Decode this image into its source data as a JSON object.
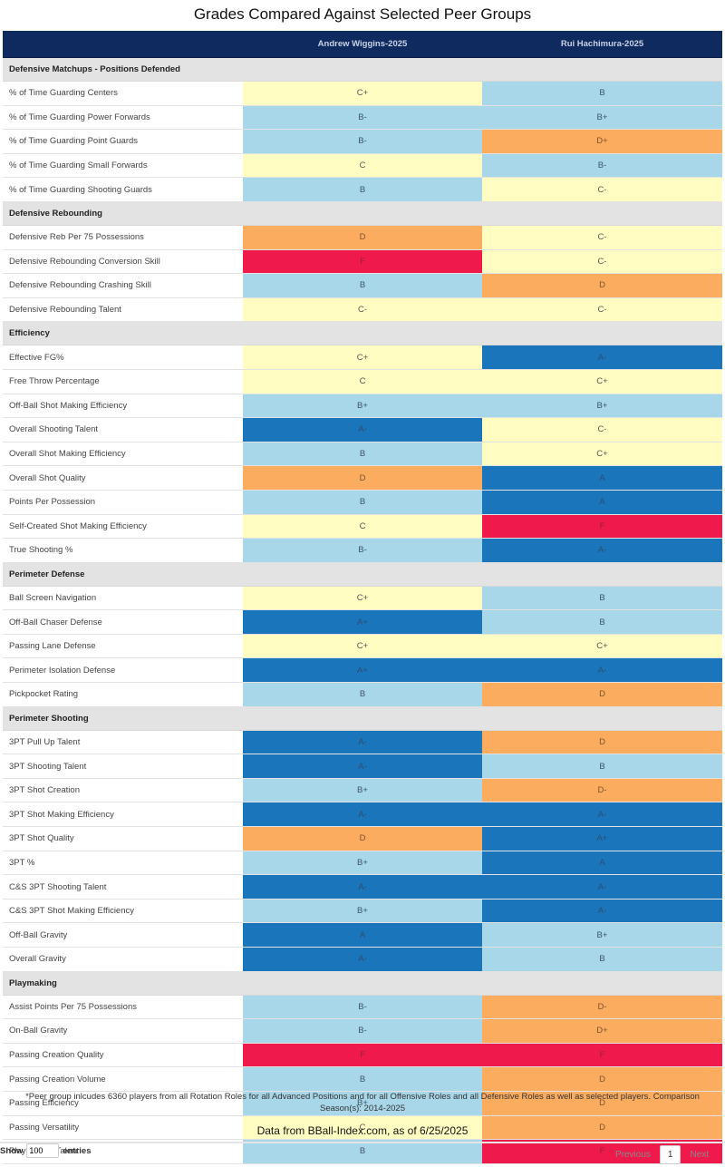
{
  "page_title": "Grades Compared Against Selected Peer Groups",
  "columns": [
    "",
    "Andrew Wiggins-2025",
    "Rui Hachimura-2025"
  ],
  "grade_colors": {
    "A+": "dark",
    "A": "dark",
    "A-": "dark",
    "B+": "light",
    "B": "light",
    "B-": "light",
    "C+": "yellow",
    "C": "yellow",
    "C-": "yellow",
    "D+": "orange",
    "D": "orange",
    "D-": "orange",
    "F": "red"
  },
  "palette": {
    "header_bg": "#0f2a5f",
    "section_bg": "#e3e3e3",
    "dark": "#1b75bb",
    "light": "#a8d7ea",
    "yellow": "#fffdc2",
    "orange": "#fcac5f",
    "red": "#ef1a4b"
  },
  "sections": [
    {
      "name": "Defensive Matchups - Positions Defended",
      "rows": [
        {
          "metric": "% of Time Guarding Centers",
          "wiggins": "C+",
          "hachimura": "B"
        },
        {
          "metric": "% of Time Guarding Power Forwards",
          "wiggins": "B-",
          "hachimura": "B+"
        },
        {
          "metric": "% of Time Guarding Point Guards",
          "wiggins": "B-",
          "hachimura": "D+"
        },
        {
          "metric": "% of Time Guarding Small Forwards",
          "wiggins": "C",
          "hachimura": "B-"
        },
        {
          "metric": "% of Time Guarding Shooting Guards",
          "wiggins": "B",
          "hachimura": "C-"
        }
      ]
    },
    {
      "name": "Defensive Rebounding",
      "rows": [
        {
          "metric": "Defensive Reb Per 75 Possessions",
          "wiggins": "D",
          "hachimura": "C-"
        },
        {
          "metric": "Defensive Rebounding Conversion Skill",
          "wiggins": "F",
          "hachimura": "C-"
        },
        {
          "metric": "Defensive Rebounding Crashing Skill",
          "wiggins": "B",
          "hachimura": "D"
        },
        {
          "metric": "Defensive Rebounding Talent",
          "wiggins": "C-",
          "hachimura": "C-"
        }
      ]
    },
    {
      "name": "Efficiency",
      "rows": [
        {
          "metric": "Effective FG%",
          "wiggins": "C+",
          "hachimura": "A-"
        },
        {
          "metric": "Free Throw Percentage",
          "wiggins": "C",
          "hachimura": "C+"
        },
        {
          "metric": "Off-Ball Shot Making Efficiency",
          "wiggins": "B+",
          "hachimura": "B+"
        },
        {
          "metric": "Overall Shooting Talent",
          "wiggins": "A-",
          "hachimura": "C-"
        },
        {
          "metric": "Overall Shot Making Efficiency",
          "wiggins": "B",
          "hachimura": "C+"
        },
        {
          "metric": "Overall Shot Quality",
          "wiggins": "D",
          "hachimura": "A"
        },
        {
          "metric": "Points Per Possession",
          "wiggins": "B",
          "hachimura": "A"
        },
        {
          "metric": "Self-Created Shot Making Efficiency",
          "wiggins": "C",
          "hachimura": "F"
        },
        {
          "metric": "True Shooting %",
          "wiggins": "B-",
          "hachimura": "A-"
        }
      ]
    },
    {
      "name": "Perimeter Defense",
      "rows": [
        {
          "metric": "Ball Screen Navigation",
          "wiggins": "C+",
          "hachimura": "B"
        },
        {
          "metric": "Off-Ball Chaser Defense",
          "wiggins": "A+",
          "hachimura": "B"
        },
        {
          "metric": "Passing Lane Defense",
          "wiggins": "C+",
          "hachimura": "C+"
        },
        {
          "metric": "Perimeter Isolation Defense",
          "wiggins": "A+",
          "hachimura": "A-"
        },
        {
          "metric": "Pickpocket Rating",
          "wiggins": "B",
          "hachimura": "D"
        }
      ]
    },
    {
      "name": "Perimeter Shooting",
      "rows": [
        {
          "metric": "3PT Pull Up Talent",
          "wiggins": "A-",
          "hachimura": "D"
        },
        {
          "metric": "3PT Shooting Talent",
          "wiggins": "A-",
          "hachimura": "B"
        },
        {
          "metric": "3PT Shot Creation",
          "wiggins": "B+",
          "hachimura": "D-"
        },
        {
          "metric": "3PT Shot Making Efficiency",
          "wiggins": "A-",
          "hachimura": "A-"
        },
        {
          "metric": "3PT Shot Quality",
          "wiggins": "D",
          "hachimura": "A+"
        },
        {
          "metric": "3PT %",
          "wiggins": "B+",
          "hachimura": "A"
        },
        {
          "metric": "C&S 3PT Shooting Talent",
          "wiggins": "A-",
          "hachimura": "A-"
        },
        {
          "metric": "C&S 3PT Shot Making Efficiency",
          "wiggins": "B+",
          "hachimura": "A-"
        },
        {
          "metric": "Off-Ball Gravity",
          "wiggins": "A",
          "hachimura": "B+"
        },
        {
          "metric": "Overall Gravity",
          "wiggins": "A-",
          "hachimura": "B"
        }
      ]
    },
    {
      "name": "Playmaking",
      "rows": [
        {
          "metric": "Assist Points Per 75 Possessions",
          "wiggins": "B-",
          "hachimura": "D-"
        },
        {
          "metric": "On-Ball Gravity",
          "wiggins": "B-",
          "hachimura": "D+"
        },
        {
          "metric": "Passing Creation Quality",
          "wiggins": "F",
          "hachimura": "F"
        },
        {
          "metric": "Passing Creation Volume",
          "wiggins": "B",
          "hachimura": "D"
        },
        {
          "metric": "Passing Efficiency",
          "wiggins": "B+",
          "hachimura": "D"
        },
        {
          "metric": "Passing Versatility",
          "wiggins": "C",
          "hachimura": "D"
        },
        {
          "metric": "Playmaking Talent",
          "wiggins": "B",
          "hachimura": "F"
        }
      ]
    }
  ],
  "footnote": "*Peer group inlcudes 6360 players from all Rotation Roles for all Advanced Positions and for all Offensive Roles and all Defensive Roles as well as selected players. Comparison Season(s): 2014-2025",
  "source": "Data from BBall-Index.com, as of 6/25/2025",
  "length_control": {
    "show_label": "Show",
    "value": "100",
    "entries_label": "entries"
  },
  "pagination": {
    "previous_label": "Previous",
    "current_page": "1",
    "next_label": "Next"
  }
}
